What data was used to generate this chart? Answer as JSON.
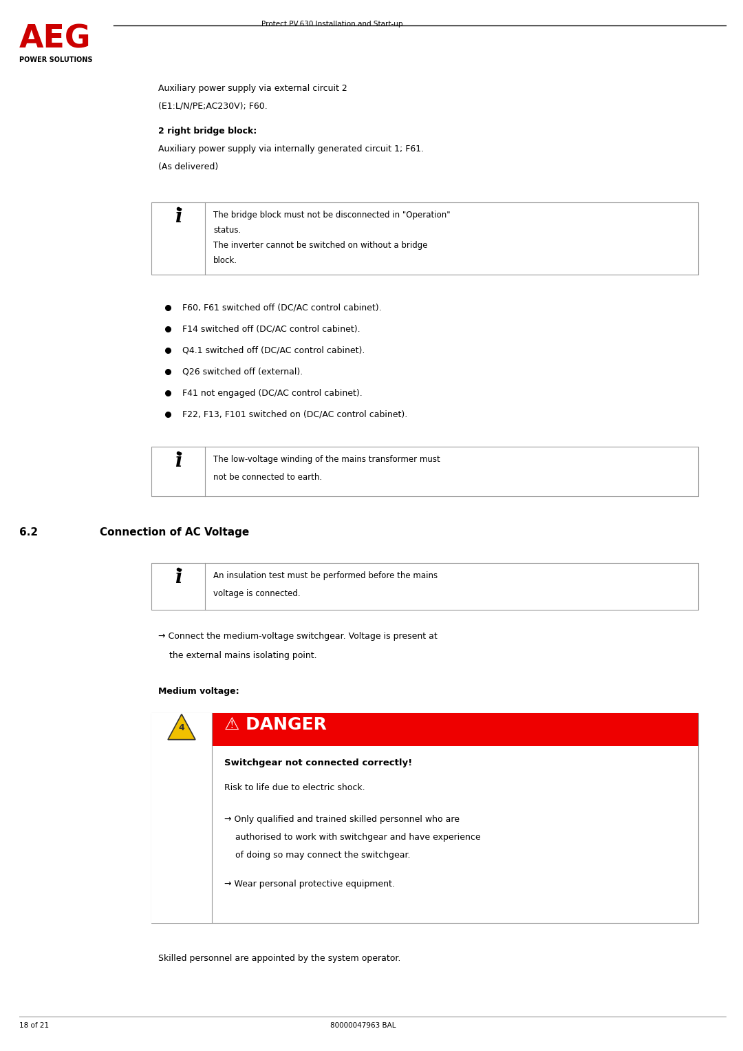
{
  "page_width": 10.8,
  "page_height": 15.27,
  "bg_color": "#ffffff",
  "header_title": "Protect PV.630 Installation and Start-up",
  "footer_left": "18 of 21",
  "footer_center": "80000047963 BAL",
  "aeg_text": "AEG",
  "power_solutions": "POWER SOLUTIONS",
  "intro_line1": "Auxiliary power supply via external circuit 2",
  "intro_line2": "(E1:L/N/PE;AC230V); F60.",
  "bridge_heading": "2 right bridge block:",
  "bridge_line1": "Auxiliary power supply via internally generated circuit 1; F61.",
  "bridge_line2": "(As delivered)",
  "info_box1_text1": "The bridge block must not be disconnected in \"Operation\"",
  "info_box1_text2": "status.",
  "info_box1_text3": "The inverter cannot be switched on without a bridge",
  "info_box1_text4": "block.",
  "bullet_items": [
    "F60, F61 switched off (DC/AC control cabinet).",
    "F14 switched off (DC/AC control cabinet).",
    "Q4.1 switched off (DC/AC control cabinet).",
    "Q26 switched off (external).",
    "F41 not engaged (DC/AC control cabinet).",
    "F22, F13, F101 switched on (DC/AC control cabinet)."
  ],
  "info_box2_text1": "The low-voltage winding of the mains transformer must",
  "info_box2_text2": "not be connected to earth.",
  "section_number": "6.2",
  "section_title": "Connection of AC Voltage",
  "info_box3_text1": "An insulation test must be performed before the mains",
  "info_box3_text2": "voltage is connected.",
  "arrow_line1": "→ Connect the medium-voltage switchgear. Voltage is present at",
  "arrow_line2": "    the external mains isolating point.",
  "medium_voltage_label": "Medium voltage:",
  "danger_header": "⚠ DANGER",
  "danger_subtitle": "Switchgear not connected correctly!",
  "danger_body1": "Risk to life due to electric shock.",
  "danger_arrow1": "→ Only qualified and trained skilled personnel who are",
  "danger_body2b": "    authorised to work with switchgear and have experience",
  "danger_body2c": "    of doing so may connect the switchgear.",
  "danger_arrow2": "→ Wear personal protective equipment.",
  "footer_note": "Skilled personnel are appointed by the system operator.",
  "danger_red": "#ee0000",
  "danger_yellow": "#f0c000",
  "text_black": "#000000",
  "border_gray": "#999999"
}
